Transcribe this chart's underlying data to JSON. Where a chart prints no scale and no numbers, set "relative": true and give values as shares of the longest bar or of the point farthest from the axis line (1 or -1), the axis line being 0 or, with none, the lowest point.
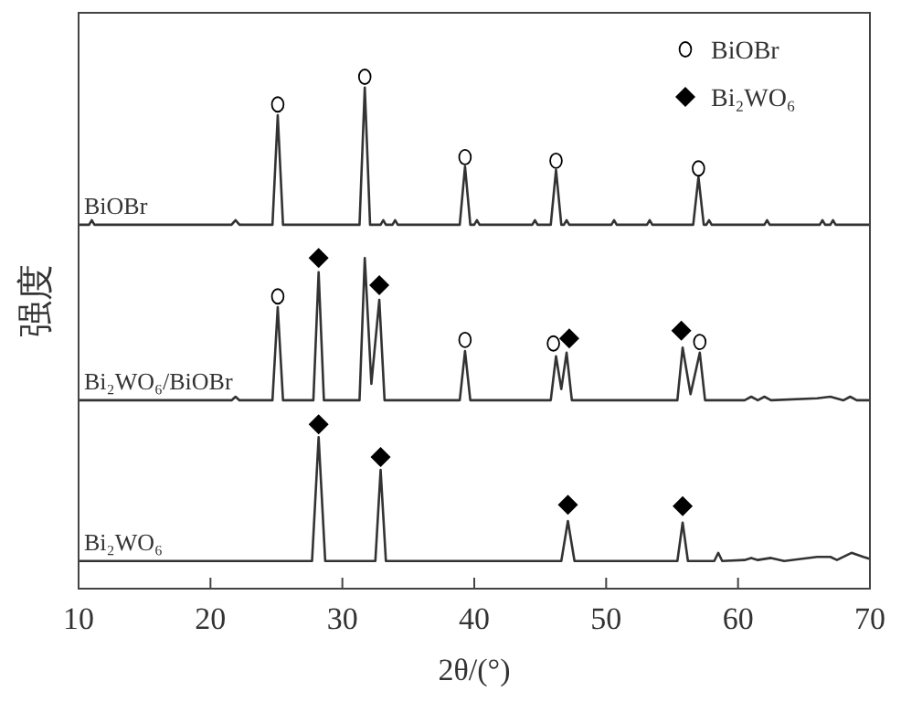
{
  "chart_data": {
    "type": "line",
    "relative": true,
    "xlabel": "2θ/(°)",
    "ylabel": "强度",
    "xlim": [
      10,
      70
    ],
    "xticks": [
      10,
      20,
      30,
      40,
      50,
      60,
      70
    ],
    "grid": false,
    "legend": "top right",
    "tick_labels": "x",
    "series": [
      {
        "name": "BiOBr",
        "color": "#333333",
        "x": [
          10,
          10.8,
          11,
          11.2,
          21.6,
          21.9,
          22.2,
          24.7,
          25.1,
          25.5,
          31.3,
          31.7,
          32.1,
          32.9,
          33.1,
          33.3,
          33.8,
          34.0,
          34.2,
          38.9,
          39.3,
          39.7,
          40.0,
          40.2,
          40.4,
          44.4,
          44.6,
          44.8,
          45.8,
          46.2,
          46.6,
          46.8,
          47.0,
          47.2,
          50.4,
          50.6,
          50.8,
          53.1,
          53.3,
          53.5,
          56.6,
          57.0,
          57.4,
          57.6,
          57.8,
          58.0,
          62.0,
          62.2,
          62.4,
          66.2,
          66.4,
          66.6,
          67.0,
          67.2,
          67.4,
          70
        ],
        "values": [
          0.711,
          0.711,
          0.72,
          0.711,
          0.711,
          0.72,
          0.711,
          0.711,
          0.925,
          0.711,
          0.711,
          0.979,
          0.711,
          0.711,
          0.72,
          0.711,
          0.711,
          0.72,
          0.711,
          0.711,
          0.825,
          0.711,
          0.711,
          0.72,
          0.711,
          0.711,
          0.72,
          0.711,
          0.711,
          0.818,
          0.711,
          0.711,
          0.72,
          0.711,
          0.711,
          0.72,
          0.711,
          0.711,
          0.72,
          0.711,
          0.711,
          0.804,
          0.711,
          0.711,
          0.72,
          0.711,
          0.711,
          0.72,
          0.711,
          0.711,
          0.72,
          0.711,
          0.711,
          0.72,
          0.711,
          0.711
        ]
      },
      {
        "name": "Bi₂WO₆/BiOBr",
        "color": "#333333",
        "x": [
          10,
          21.6,
          21.9,
          22.2,
          24.7,
          25.1,
          25.5,
          27.8,
          28.2,
          28.6,
          31.3,
          31.7,
          32.2,
          32.8,
          33.2,
          38.9,
          39.3,
          39.7,
          45.8,
          46.2,
          46.6,
          47.0,
          47.4,
          55.4,
          55.8,
          56.4,
          57.1,
          57.5,
          60.5,
          61.0,
          61.5,
          62.0,
          62.5,
          66.0,
          67.0,
          68.0,
          68.5,
          69.0,
          70
        ],
        "values": [
          0.368,
          0.368,
          0.375,
          0.368,
          0.368,
          0.55,
          0.368,
          0.368,
          0.618,
          0.368,
          0.368,
          0.646,
          0.4,
          0.564,
          0.368,
          0.368,
          0.464,
          0.368,
          0.368,
          0.454,
          0.39,
          0.461,
          0.368,
          0.368,
          0.471,
          0.38,
          0.461,
          0.368,
          0.368,
          0.375,
          0.368,
          0.375,
          0.368,
          0.372,
          0.375,
          0.368,
          0.375,
          0.368,
          0.368
        ]
      },
      {
        "name": "Bi₂WO₆",
        "color": "#333333",
        "x": [
          10,
          27.7,
          28.2,
          28.7,
          32.5,
          32.9,
          33.3,
          46.6,
          47.1,
          47.6,
          55.4,
          55.8,
          56.2,
          58.2,
          58.5,
          58.8,
          60.5,
          61.0,
          61.5,
          62.5,
          63.5,
          66.0,
          67.0,
          67.5,
          68.6,
          69.5,
          70
        ],
        "values": [
          0.054,
          0.054,
          0.296,
          0.054,
          0.054,
          0.232,
          0.054,
          0.054,
          0.132,
          0.054,
          0.054,
          0.129,
          0.054,
          0.054,
          0.07,
          0.054,
          0.056,
          0.06,
          0.056,
          0.06,
          0.054,
          0.062,
          0.062,
          0.056,
          0.07,
          0.062,
          0.058
        ]
      },
      {
        "name": "BiOBr",
        "type": "scatter",
        "color": "#000000",
        "marker": "circle",
        "x": [
          25.1,
          31.7,
          39.3,
          46.2,
          57.0,
          25.1,
          39.3,
          46.0,
          57.1
        ],
        "values": [
          0.946,
          1.0,
          0.843,
          0.836,
          0.821,
          0.571,
          0.486,
          0.479,
          0.482
        ]
      },
      {
        "name": "Bi₂WO₆",
        "type": "scatter",
        "color": "#000000",
        "marker": "diamond",
        "x": [
          28.2,
          32.8,
          47.2,
          55.7,
          28.2,
          32.9,
          47.1,
          55.8
        ],
        "values": [
          0.646,
          0.593,
          0.489,
          0.504,
          0.321,
          0.257,
          0.164,
          0.161
        ]
      }
    ]
  }
}
